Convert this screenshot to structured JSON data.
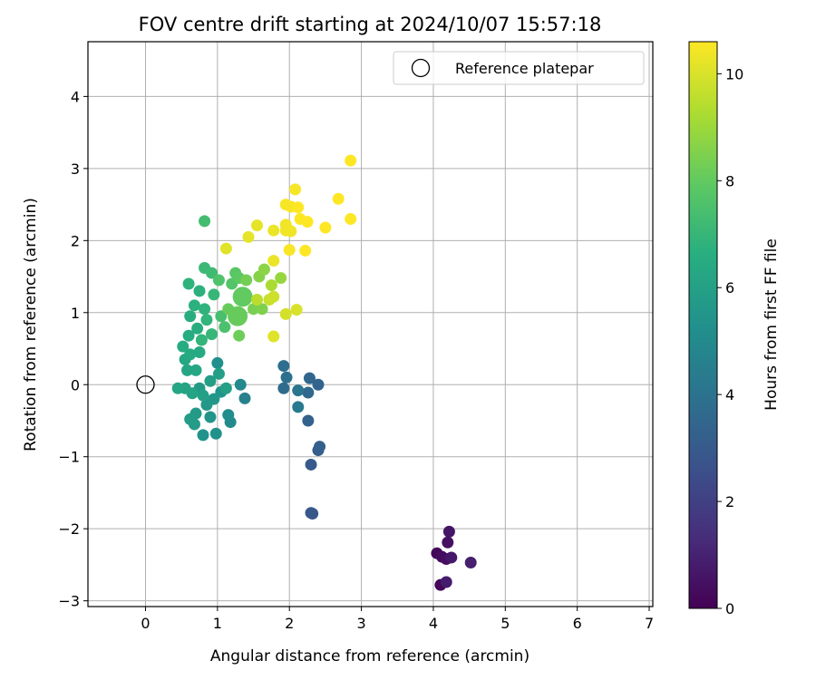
{
  "chart_data": {
    "type": "scatter",
    "title": "FOV centre drift starting at 2024/10/07 15:57:18",
    "xlabel": "Angular distance from reference (arcmin)",
    "ylabel": "Rotation from reference (arcmin)",
    "xlim": [
      -0.8,
      7.05
    ],
    "ylim": [
      -3.08,
      4.76
    ],
    "xticks": [
      0,
      1,
      2,
      3,
      4,
      5,
      6,
      7
    ],
    "yticks": [
      -3,
      -2,
      -1,
      0,
      1,
      2,
      3,
      4
    ],
    "xtick_labels": [
      "0",
      "1",
      "2",
      "3",
      "4",
      "5",
      "6",
      "7"
    ],
    "ytick_labels": [
      "−3",
      "−2",
      "−1",
      "0",
      "1",
      "2",
      "3",
      "4"
    ],
    "grid": true,
    "legend": {
      "placement": "top-right",
      "label": "Reference platepar"
    },
    "reference_point": {
      "x": 0,
      "y": 0
    },
    "colorbar": {
      "label": "Hours from first FF file",
      "range": [
        0,
        10.6
      ],
      "ticks": [
        0,
        2,
        4,
        6,
        8,
        10
      ],
      "tick_labels": [
        "0",
        "2",
        "4",
        "6",
        "8",
        "10"
      ],
      "colormap": "viridis"
    },
    "points": [
      {
        "x": 4.1,
        "y": -2.78,
        "t": 0.1
      },
      {
        "x": 4.05,
        "y": -2.34,
        "t": 0.2
      },
      {
        "x": 4.12,
        "y": -2.39,
        "t": 0.3
      },
      {
        "x": 4.18,
        "y": -2.42,
        "t": 0.4
      },
      {
        "x": 4.2,
        "y": -2.19,
        "t": 0.5
      },
      {
        "x": 4.22,
        "y": -2.04,
        "t": 0.6
      },
      {
        "x": 4.25,
        "y": -2.4,
        "t": 0.7
      },
      {
        "x": 4.18,
        "y": -2.74,
        "t": 0.8
      },
      {
        "x": 4.52,
        "y": -2.47,
        "t": 0.9
      },
      {
        "x": 2.32,
        "y": -1.79,
        "t": 2.8
      },
      {
        "x": 2.3,
        "y": -1.78,
        "t": 2.9
      },
      {
        "x": 2.3,
        "y": -1.11,
        "t": 3.0
      },
      {
        "x": 2.4,
        "y": -0.91,
        "t": 3.1
      },
      {
        "x": 2.42,
        "y": -0.86,
        "t": 3.2
      },
      {
        "x": 2.26,
        "y": -0.5,
        "t": 3.3
      },
      {
        "x": 2.4,
        "y": 0.0,
        "t": 3.4
      },
      {
        "x": 2.28,
        "y": 0.09,
        "t": 3.5
      },
      {
        "x": 2.26,
        "y": -0.11,
        "t": 3.6
      },
      {
        "x": 1.92,
        "y": -0.05,
        "t": 3.7
      },
      {
        "x": 1.92,
        "y": 0.26,
        "t": 3.8
      },
      {
        "x": 1.96,
        "y": 0.1,
        "t": 3.9
      },
      {
        "x": 2.12,
        "y": -0.08,
        "t": 4.1
      },
      {
        "x": 2.12,
        "y": -0.31,
        "t": 4.3
      },
      {
        "x": 1.38,
        "y": -0.19,
        "t": 4.6
      },
      {
        "x": 1.32,
        "y": 0.0,
        "t": 4.9
      },
      {
        "x": 1.18,
        "y": -0.52,
        "t": 5.0
      },
      {
        "x": 1.15,
        "y": -0.42,
        "t": 5.1
      },
      {
        "x": 1.0,
        "y": 0.3,
        "t": 5.2
      },
      {
        "x": 0.98,
        "y": -0.68,
        "t": 5.3
      },
      {
        "x": 0.8,
        "y": -0.7,
        "t": 5.4
      },
      {
        "x": 1.05,
        "y": -0.1,
        "t": 5.5
      },
      {
        "x": 0.9,
        "y": -0.45,
        "t": 5.5
      },
      {
        "x": 0.95,
        "y": -0.2,
        "t": 5.6
      },
      {
        "x": 0.85,
        "y": -0.28,
        "t": 5.6
      },
      {
        "x": 0.75,
        "y": -0.05,
        "t": 5.7
      },
      {
        "x": 0.7,
        "y": -0.4,
        "t": 5.7
      },
      {
        "x": 0.62,
        "y": -0.48,
        "t": 5.8
      },
      {
        "x": 0.68,
        "y": -0.55,
        "t": 5.8
      },
      {
        "x": 0.9,
        "y": 0.05,
        "t": 5.9
      },
      {
        "x": 1.02,
        "y": 0.15,
        "t": 5.9
      },
      {
        "x": 1.12,
        "y": -0.05,
        "t": 6.0
      },
      {
        "x": 0.8,
        "y": -0.15,
        "t": 6.0
      },
      {
        "x": 0.65,
        "y": -0.12,
        "t": 6.1
      },
      {
        "x": 0.55,
        "y": -0.05,
        "t": 6.1
      },
      {
        "x": 0.45,
        "y": -0.05,
        "t": 6.2
      },
      {
        "x": 0.58,
        "y": 0.2,
        "t": 6.2
      },
      {
        "x": 0.7,
        "y": 0.2,
        "t": 6.3
      },
      {
        "x": 0.55,
        "y": 0.35,
        "t": 6.3
      },
      {
        "x": 0.62,
        "y": 0.42,
        "t": 6.4
      },
      {
        "x": 0.75,
        "y": 0.45,
        "t": 6.4
      },
      {
        "x": 0.52,
        "y": 0.53,
        "t": 6.5
      },
      {
        "x": 0.6,
        "y": 0.68,
        "t": 6.5
      },
      {
        "x": 0.72,
        "y": 0.78,
        "t": 6.6
      },
      {
        "x": 0.62,
        "y": 0.95,
        "t": 6.6
      },
      {
        "x": 0.68,
        "y": 1.1,
        "t": 6.7
      },
      {
        "x": 0.75,
        "y": 1.3,
        "t": 6.7
      },
      {
        "x": 0.6,
        "y": 1.4,
        "t": 6.8
      },
      {
        "x": 0.82,
        "y": 1.05,
        "t": 6.8
      },
      {
        "x": 0.85,
        "y": 0.9,
        "t": 6.9
      },
      {
        "x": 0.78,
        "y": 0.62,
        "t": 6.9
      },
      {
        "x": 0.92,
        "y": 0.7,
        "t": 7.0
      },
      {
        "x": 0.95,
        "y": 1.25,
        "t": 7.0
      },
      {
        "x": 0.82,
        "y": 1.62,
        "t": 7.1
      },
      {
        "x": 0.92,
        "y": 1.55,
        "t": 7.2
      },
      {
        "x": 0.82,
        "y": 2.27,
        "t": 7.3
      },
      {
        "x": 1.05,
        "y": 0.95,
        "t": 7.4
      },
      {
        "x": 1.1,
        "y": 0.8,
        "t": 7.5
      },
      {
        "x": 1.02,
        "y": 1.45,
        "t": 7.6
      },
      {
        "x": 1.2,
        "y": 1.4,
        "t": 7.7
      },
      {
        "x": 1.25,
        "y": 1.55,
        "t": 7.8
      },
      {
        "x": 1.3,
        "y": 1.48,
        "t": 7.9
      },
      {
        "x": 1.35,
        "y": 1.22,
        "t": 8.0,
        "big": true
      },
      {
        "x": 1.28,
        "y": 0.95,
        "t": 8.1,
        "big": true
      },
      {
        "x": 1.15,
        "y": 1.05,
        "t": 8.1
      },
      {
        "x": 1.3,
        "y": 0.68,
        "t": 8.2
      },
      {
        "x": 1.4,
        "y": 1.45,
        "t": 8.3
      },
      {
        "x": 1.5,
        "y": 1.05,
        "t": 8.4
      },
      {
        "x": 1.62,
        "y": 1.05,
        "t": 8.5
      },
      {
        "x": 1.58,
        "y": 1.5,
        "t": 8.6
      },
      {
        "x": 1.65,
        "y": 1.6,
        "t": 8.7
      },
      {
        "x": 1.88,
        "y": 1.48,
        "t": 8.9
      },
      {
        "x": 1.75,
        "y": 1.38,
        "t": 9.2
      },
      {
        "x": 1.55,
        "y": 1.18,
        "t": 9.5
      },
      {
        "x": 1.72,
        "y": 1.18,
        "t": 9.7
      },
      {
        "x": 1.78,
        "y": 1.22,
        "t": 9.8
      },
      {
        "x": 1.95,
        "y": 0.98,
        "t": 9.9
      },
      {
        "x": 2.1,
        "y": 1.04,
        "t": 10.0
      },
      {
        "x": 1.78,
        "y": 0.67,
        "t": 10.1
      },
      {
        "x": 1.12,
        "y": 1.89,
        "t": 10.1
      },
      {
        "x": 1.43,
        "y": 2.05,
        "t": 10.2
      },
      {
        "x": 1.55,
        "y": 2.21,
        "t": 10.2
      },
      {
        "x": 1.78,
        "y": 1.72,
        "t": 10.3
      },
      {
        "x": 1.78,
        "y": 2.14,
        "t": 10.3
      },
      {
        "x": 1.95,
        "y": 2.22,
        "t": 10.4
      },
      {
        "x": 1.95,
        "y": 2.14,
        "t": 10.4
      },
      {
        "x": 2.02,
        "y": 2.13,
        "t": 10.4
      },
      {
        "x": 2.0,
        "y": 1.87,
        "t": 10.5
      },
      {
        "x": 2.02,
        "y": 2.47,
        "t": 10.5
      },
      {
        "x": 1.95,
        "y": 2.5,
        "t": 10.5
      },
      {
        "x": 2.08,
        "y": 2.71,
        "t": 10.5
      },
      {
        "x": 2.12,
        "y": 2.46,
        "t": 10.6
      },
      {
        "x": 2.15,
        "y": 2.3,
        "t": 10.6
      },
      {
        "x": 2.25,
        "y": 2.26,
        "t": 10.6
      },
      {
        "x": 2.22,
        "y": 1.86,
        "t": 10.6
      },
      {
        "x": 2.5,
        "y": 2.18,
        "t": 10.6
      },
      {
        "x": 2.68,
        "y": 2.58,
        "t": 10.6
      },
      {
        "x": 2.85,
        "y": 2.3,
        "t": 10.6
      },
      {
        "x": 2.85,
        "y": 3.11,
        "t": 10.6
      }
    ]
  }
}
